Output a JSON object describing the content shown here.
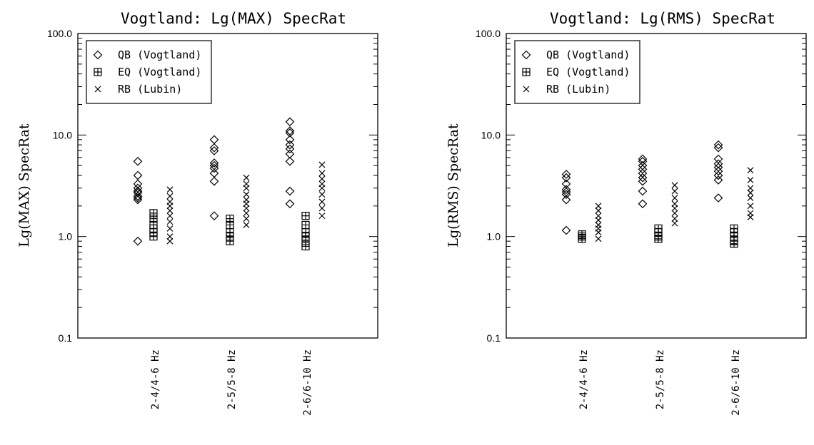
{
  "chart_data": [
    {
      "type": "scatter",
      "title": "Vogtland: Lg(MAX) SpecRat",
      "ylabel": "Lg(MAX) SpecRat",
      "xlabel": "",
      "yscale": "log",
      "ylim": [
        0.1,
        100.0
      ],
      "yticks": [
        "0.1",
        "1.0",
        "10.0",
        "100.0"
      ],
      "categories": [
        "2-4/4-6 Hz",
        "2-5/5-8 Hz",
        "2-6/6-10 Hz"
      ],
      "legend": "top-left",
      "series": [
        {
          "name": "QB (Vogtland)",
          "marker": "diamond",
          "values": [
            [
              0.9,
              2.3,
              2.4,
              2.5,
              2.7,
              2.8,
              3.0,
              3.3,
              4.0,
              5.5
            ],
            [
              1.6,
              3.5,
              4.2,
              4.7,
              5.0,
              5.3,
              7.0,
              7.5,
              9.0
            ],
            [
              2.1,
              2.8,
              5.5,
              6.5,
              7.3,
              8.0,
              9.0,
              10.5,
              11.0,
              13.5
            ]
          ]
        },
        {
          "name": "EQ (Vogtland)",
          "marker": "boxplus",
          "values": [
            [
              1.0,
              1.1,
              1.2,
              1.3,
              1.5,
              1.7
            ],
            [
              0.9,
              1.0,
              1.1,
              1.3,
              1.5
            ],
            [
              0.8,
              0.9,
              1.0,
              1.1,
              1.3,
              1.6
            ]
          ]
        },
        {
          "name": "RB (Lubin)",
          "marker": "cross",
          "values": [
            [
              0.9,
              1.0,
              1.2,
              1.4,
              1.6,
              1.8,
              2.0,
              2.2,
              2.5,
              2.9
            ],
            [
              1.3,
              1.5,
              1.7,
              1.9,
              2.1,
              2.3,
              2.6,
              3.0,
              3.3,
              3.8
            ],
            [
              1.6,
              1.9,
              2.2,
              2.6,
              3.0,
              3.3,
              3.7,
              4.2,
              5.1
            ]
          ]
        }
      ]
    },
    {
      "type": "scatter",
      "title": "Vogtland: Lg(RMS) SpecRat",
      "ylabel": "Lg(RMS) SpecRat",
      "xlabel": "",
      "yscale": "log",
      "ylim": [
        0.1,
        100.0
      ],
      "yticks": [
        "0.1",
        "1.0",
        "10.0",
        "100.0"
      ],
      "categories": [
        "2-4/4-6 Hz",
        "2-5/5-8 Hz",
        "2-6/6-10 Hz"
      ],
      "legend": "top-left",
      "series": [
        {
          "name": "QB (Vogtland)",
          "marker": "diamond",
          "values": [
            [
              1.15,
              2.3,
              2.6,
              2.75,
              2.9,
              3.3,
              3.8,
              4.1
            ],
            [
              2.1,
              2.8,
              3.5,
              3.8,
              4.2,
              4.6,
              5.0,
              5.5,
              5.8
            ],
            [
              2.4,
              3.6,
              4.0,
              4.4,
              4.8,
              5.2,
              5.8,
              7.5,
              8.0
            ]
          ]
        },
        {
          "name": "EQ (Vogtland)",
          "marker": "boxplus",
          "values": [
            [
              0.95,
              1.0,
              1.05
            ],
            [
              0.95,
              1.0,
              1.1,
              1.2
            ],
            [
              0.85,
              0.9,
              1.0,
              1.1,
              1.2
            ]
          ]
        },
        {
          "name": "RB (Lubin)",
          "marker": "cross",
          "values": [
            [
              0.95,
              1.1,
              1.2,
              1.3,
              1.45,
              1.6,
              1.8,
              2.0
            ],
            [
              1.35,
              1.5,
              1.7,
              1.9,
              2.1,
              2.4,
              2.8,
              3.2
            ],
            [
              1.55,
              1.7,
              2.0,
              2.4,
              2.7,
              3.0,
              3.6,
              4.5
            ]
          ]
        }
      ]
    }
  ]
}
